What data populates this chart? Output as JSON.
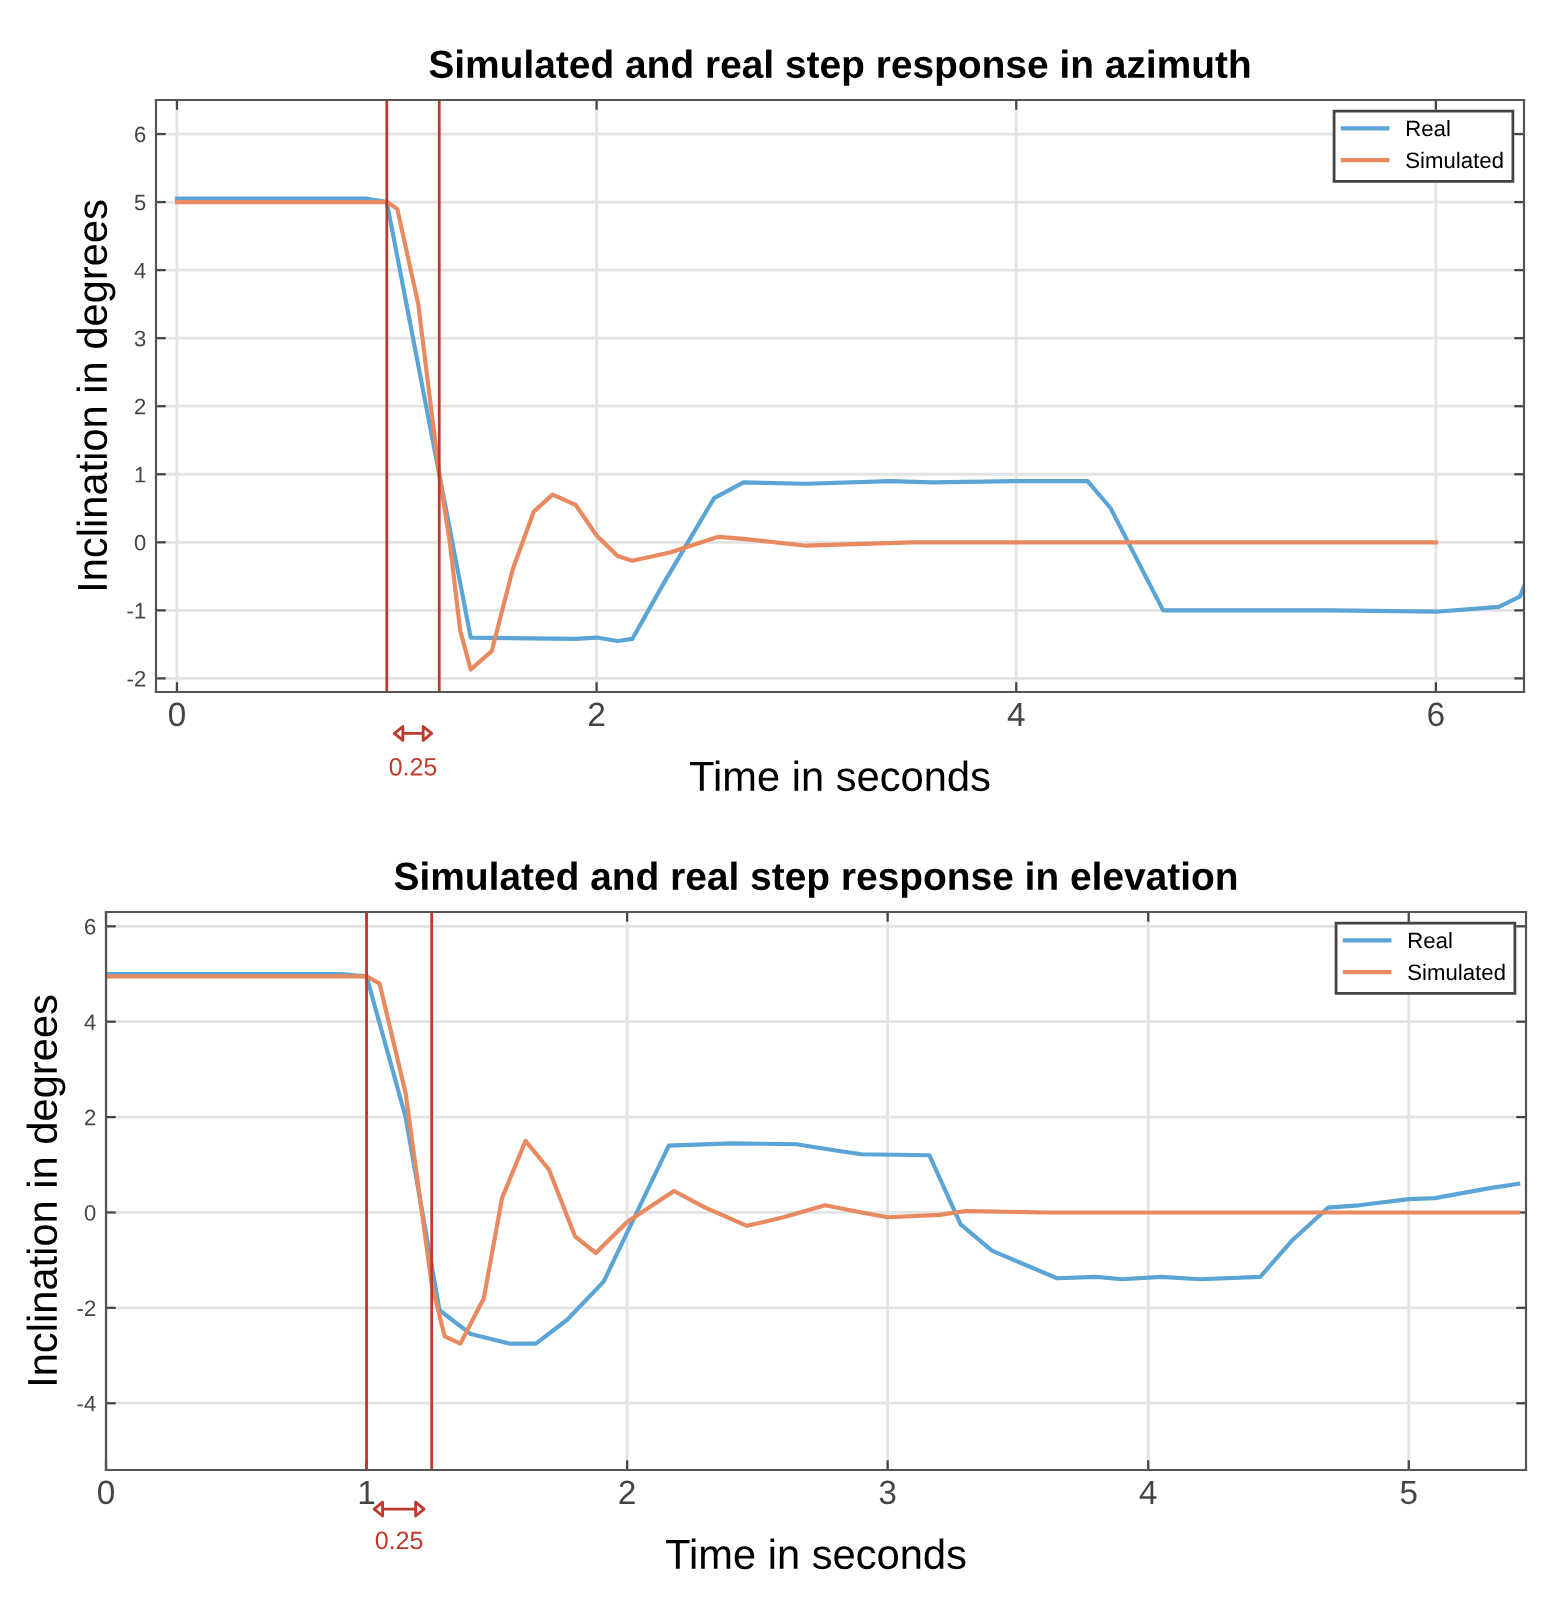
{
  "chart_data": [
    {
      "type": "line",
      "title": "Simulated and real step response in azimuth",
      "xlabel": "Time in seconds",
      "ylabel": "Inclination in degrees",
      "xlim": [
        -0.1,
        6.42
      ],
      "ylim": [
        -2.2,
        6.5
      ],
      "xticks": [
        0,
        2,
        4,
        6
      ],
      "yticks": [
        -2,
        -1,
        0,
        1,
        2,
        3,
        4,
        5,
        6
      ],
      "grid": true,
      "legend": "top right",
      "series": [
        {
          "name": "Real",
          "color": "#5aa5d5",
          "x": [
            0,
            0.9,
            1.0,
            1.4,
            1.9,
            2.0,
            2.1,
            2.17,
            2.32,
            2.56,
            2.7,
            3.0,
            3.4,
            3.6,
            4.0,
            4.34,
            4.45,
            4.7,
            5.5,
            6.0,
            6.3,
            6.4,
            6.42
          ],
          "values": [
            5.05,
            5.05,
            5.0,
            -1.4,
            -1.42,
            -1.4,
            -1.45,
            -1.42,
            -0.6,
            0.65,
            0.88,
            0.86,
            0.9,
            0.88,
            0.9,
            0.9,
            0.5,
            -1.0,
            -1.0,
            -1.02,
            -0.95,
            -0.8,
            -0.65
          ]
        },
        {
          "name": "Simulated",
          "color": "#e8895f",
          "x": [
            0,
            1.0,
            1.05,
            1.15,
            1.25,
            1.3,
            1.35,
            1.4,
            1.5,
            1.6,
            1.7,
            1.79,
            1.9,
            2.0,
            2.1,
            2.17,
            2.35,
            2.58,
            2.7,
            3.0,
            3.5,
            6.0
          ],
          "values": [
            5.0,
            5.0,
            4.9,
            3.5,
            1.0,
            0,
            -1.3,
            -1.87,
            -1.6,
            -0.4,
            0.45,
            0.7,
            0.55,
            0.1,
            -0.2,
            -0.27,
            -0.15,
            0.08,
            0.05,
            -0.05,
            0.0,
            0.0
          ]
        }
      ],
      "ref_lines": [
        {
          "axis": "x",
          "value": 1.0,
          "color": "#c0392b"
        },
        {
          "axis": "x",
          "value": 1.25,
          "color": "#c0392b"
        }
      ],
      "annotations": [
        "0.25"
      ]
    },
    {
      "type": "line",
      "title": "Simulated and real step response in elevation",
      "xlabel": "Time in seconds",
      "ylabel": "Inclination in degrees",
      "xlim": [
        0,
        5.45
      ],
      "ylim": [
        -5.4,
        6.3
      ],
      "xticks": [
        0,
        1,
        2,
        3,
        4,
        5
      ],
      "yticks": [
        -4,
        -2,
        0,
        2,
        4,
        6
      ],
      "grid": true,
      "legend": "top right",
      "series": [
        {
          "name": "Real",
          "color": "#5aa5d5",
          "x": [
            0,
            0.9,
            1.0,
            1.15,
            1.28,
            1.4,
            1.55,
            1.65,
            1.77,
            1.91,
            2.16,
            2.4,
            2.65,
            2.8,
            2.9,
            3.16,
            3.28,
            3.4,
            3.65,
            3.8,
            3.9,
            4.05,
            4.2,
            4.43,
            4.55,
            4.69,
            4.81,
            5.0,
            5.1,
            5.3,
            5.42
          ],
          "values": [
            5.0,
            5.0,
            4.95,
            2.0,
            -2.05,
            -2.55,
            -2.75,
            -2.75,
            -2.25,
            -1.45,
            1.4,
            1.45,
            1.43,
            1.3,
            1.22,
            1.2,
            -0.25,
            -0.8,
            -1.38,
            -1.35,
            -1.4,
            -1.35,
            -1.4,
            -1.35,
            -0.6,
            0.1,
            0.15,
            0.28,
            0.3,
            0.5,
            0.6
          ]
        },
        {
          "name": "Simulated",
          "color": "#e8895f",
          "x": [
            0,
            1.0,
            1.05,
            1.15,
            1.25,
            1.3,
            1.36,
            1.45,
            1.52,
            1.61,
            1.7,
            1.8,
            1.88,
            2.0,
            2.18,
            2.3,
            2.46,
            2.6,
            2.76,
            2.9,
            3.0,
            3.2,
            3.3,
            3.6,
            4.0,
            5.42
          ],
          "values": [
            4.95,
            4.95,
            4.8,
            2.5,
            -1.5,
            -2.6,
            -2.75,
            -1.8,
            0.3,
            1.5,
            0.9,
            -0.5,
            -0.85,
            -0.2,
            0.45,
            0.1,
            -0.28,
            -0.1,
            0.15,
            0.0,
            -0.1,
            -0.05,
            0.03,
            0.0,
            0.0,
            0.0
          ]
        }
      ],
      "ref_lines": [
        {
          "axis": "x",
          "value": 1.0,
          "color": "#c0392b"
        },
        {
          "axis": "x",
          "value": 1.25,
          "color": "#c0392b"
        }
      ],
      "annotations": [
        "0.25"
      ]
    }
  ]
}
